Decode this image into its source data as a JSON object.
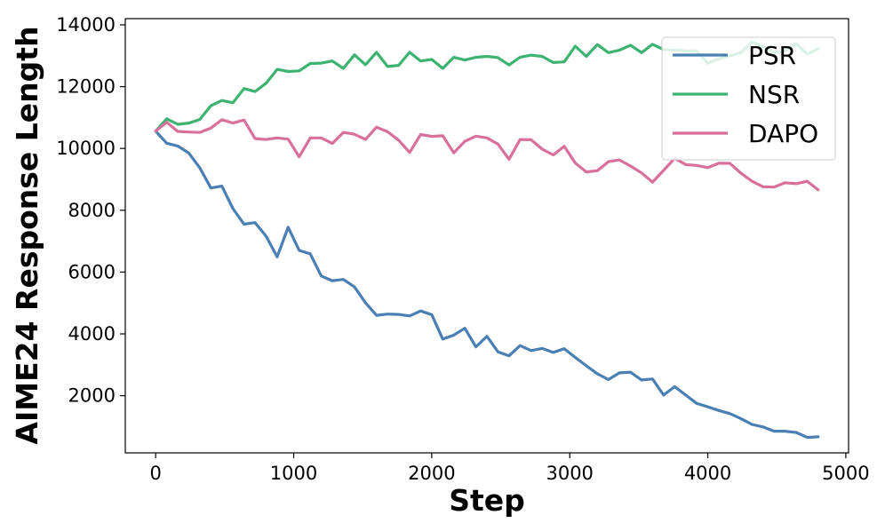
{
  "chart_data": {
    "type": "line",
    "title": "",
    "xlabel": "Step",
    "ylabel": "AIME24 Response Length",
    "xlim": [
      -220,
      5020
    ],
    "ylim": [
      150,
      14200
    ],
    "xticks": [
      0,
      1000,
      2000,
      3000,
      4000,
      5000
    ],
    "xtick_labels": [
      "0",
      "1000",
      "2000",
      "3000",
      "4000",
      "5000"
    ],
    "yticks": [
      2000,
      4000,
      6000,
      8000,
      10000,
      12000,
      14000
    ],
    "ytick_labels": [
      "2000",
      "4000",
      "6000",
      "8000",
      "10000",
      "12000",
      "14000"
    ],
    "grid": false,
    "legend_position": "top-right",
    "x": [
      0,
      80,
      160,
      240,
      320,
      400,
      480,
      560,
      640,
      720,
      800,
      880,
      960,
      1040,
      1120,
      1200,
      1280,
      1360,
      1440,
      1520,
      1600,
      1680,
      1760,
      1840,
      1920,
      2000,
      2080,
      2160,
      2240,
      2320,
      2400,
      2480,
      2560,
      2640,
      2720,
      2800,
      2880,
      2960,
      3040,
      3120,
      3200,
      3280,
      3360,
      3440,
      3520,
      3600,
      3680,
      3760,
      3840,
      3920,
      4000,
      4080,
      4160,
      4240,
      4320,
      4400,
      4480,
      4560,
      4640,
      4720,
      4800
    ],
    "series": [
      {
        "name": "PSR",
        "color": "#4a7fb3",
        "values": [
          10560,
          10170,
          10080,
          9850,
          9370,
          8720,
          8780,
          8050,
          7550,
          7600,
          7160,
          6490,
          7450,
          6700,
          6590,
          5870,
          5720,
          5760,
          5520,
          5010,
          4600,
          4640,
          4630,
          4580,
          4740,
          4620,
          3830,
          3960,
          4180,
          3580,
          3920,
          3420,
          3290,
          3620,
          3460,
          3530,
          3400,
          3520,
          3240,
          2970,
          2710,
          2520,
          2740,
          2760,
          2510,
          2540,
          2020,
          2290,
          2020,
          1750,
          1640,
          1520,
          1420,
          1260,
          1070,
          990,
          850,
          850,
          810,
          650,
          670
        ]
      },
      {
        "name": "NSR",
        "color": "#3cb371",
        "values": [
          10560,
          10960,
          10780,
          10820,
          10940,
          11380,
          11550,
          11480,
          11940,
          11840,
          12110,
          12560,
          12490,
          12510,
          12750,
          12760,
          12830,
          12590,
          13030,
          12710,
          13110,
          12650,
          12690,
          13110,
          12830,
          12880,
          12590,
          12950,
          12860,
          12950,
          12980,
          12940,
          12700,
          12950,
          13020,
          12980,
          12780,
          12800,
          13310,
          12980,
          13360,
          13100,
          13180,
          13340,
          13100,
          13370,
          13200,
          13180,
          13160,
          13150,
          12760,
          12900,
          13000,
          13100,
          13450,
          13300,
          13100,
          13150,
          13400,
          13050,
          13230
        ]
      },
      {
        "name": "DAPO",
        "color": "#d9709b",
        "values": [
          10560,
          10850,
          10550,
          10530,
          10520,
          10660,
          10930,
          10820,
          10920,
          10320,
          10290,
          10340,
          10300,
          9730,
          10340,
          10340,
          10160,
          10520,
          10460,
          10290,
          10690,
          10540,
          10270,
          9870,
          10450,
          10390,
          10410,
          9860,
          10230,
          10400,
          10340,
          10140,
          9650,
          10290,
          10280,
          9980,
          9790,
          10070,
          9530,
          9240,
          9280,
          9570,
          9630,
          9430,
          9210,
          8910,
          9290,
          9680,
          9480,
          9450,
          9380,
          9520,
          9520,
          9200,
          8940,
          8760,
          8750,
          8890,
          8860,
          8940,
          8660
        ]
      }
    ]
  }
}
